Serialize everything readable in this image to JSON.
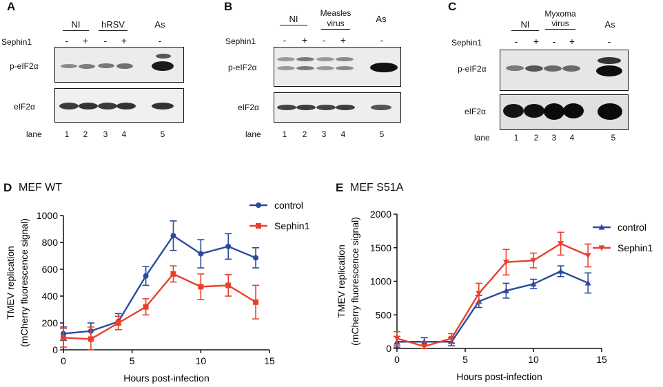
{
  "panels": {
    "A": {
      "label": "A",
      "groups": [
        "NI",
        "hRSV",
        "As"
      ],
      "sephin_label": "Sephin1",
      "signs": [
        "-",
        "+",
        "-",
        "+",
        "-"
      ],
      "band_labels": [
        "p-eIF2α",
        "eIF2α"
      ],
      "lane_label": "lane",
      "lanes": [
        "1",
        "2",
        "3",
        "4",
        "5"
      ]
    },
    "B": {
      "label": "B",
      "groups": [
        "NI",
        "Measles",
        "virus",
        "As"
      ],
      "sephin_label": "Sephin1",
      "signs": [
        "-",
        "+",
        "-",
        "+",
        "-"
      ],
      "band_labels": [
        "p-eIF2α",
        "eIF2α"
      ],
      "lane_label": "lane",
      "lanes": [
        "1",
        "2",
        "3",
        "4",
        "5"
      ]
    },
    "C": {
      "label": "C",
      "groups": [
        "NI",
        "Myxoma",
        "virus",
        "As"
      ],
      "sephin_label": "Sephin1",
      "signs": [
        "-",
        "+",
        "-",
        "+",
        "-"
      ],
      "band_labels": [
        "p-eIF2α",
        "eIF2α"
      ],
      "lane_label": "lane",
      "lanes": [
        "1",
        "2",
        "3",
        "4",
        "5"
      ]
    },
    "D": {
      "label": "D",
      "title": "MEF WT"
    },
    "E": {
      "label": "E",
      "title": "MEF S51A"
    }
  },
  "chart_data": [
    {
      "type": "line",
      "title": "MEF WT",
      "xlabel": "Hours post-infection",
      "ylabel": [
        "TMEV replication",
        "(mCherry fluorescence signal)"
      ],
      "xlim": [
        0,
        15
      ],
      "ylim": [
        0,
        1000
      ],
      "xticks": [
        0,
        5,
        10,
        15
      ],
      "yticks": [
        0,
        200,
        400,
        600,
        800,
        1000
      ],
      "x": [
        0,
        2,
        4,
        6,
        8,
        10,
        12,
        14
      ],
      "legend": "top-right",
      "series": [
        {
          "name": "control",
          "color": "#2a4a9c",
          "marker": "circle",
          "values": [
            120,
            140,
            210,
            550,
            850,
            715,
            770,
            685
          ],
          "errors": [
            50,
            60,
            60,
            70,
            110,
            105,
            95,
            75
          ]
        },
        {
          "name": "Sephin1",
          "color": "#e8412b",
          "marker": "square",
          "values": [
            90,
            80,
            200,
            320,
            565,
            470,
            480,
            355
          ],
          "errors": [
            70,
            90,
            50,
            60,
            60,
            95,
            80,
            125
          ]
        }
      ]
    },
    {
      "type": "line",
      "title": "MEF S51A",
      "xlabel": "Hours post-infection",
      "ylabel": [
        "TMEV replication",
        "(mCherry fluorescence signal)"
      ],
      "xlim": [
        0,
        15
      ],
      "ylim": [
        0,
        2000
      ],
      "xticks": [
        0,
        5,
        10,
        15
      ],
      "yticks": [
        0,
        500,
        1000,
        1500,
        2000
      ],
      "x": [
        0,
        2,
        4,
        6,
        8,
        10,
        12,
        14
      ],
      "legend": "right",
      "series": [
        {
          "name": "control",
          "color": "#2a4a9c",
          "marker": "triangle-up",
          "values": [
            100,
            100,
            100,
            700,
            860,
            960,
            1150,
            975
          ],
          "errors": [
            80,
            60,
            60,
            90,
            110,
            70,
            80,
            150
          ]
        },
        {
          "name": "Sephin1",
          "color": "#e8412b",
          "marker": "triangle-down",
          "values": [
            150,
            30,
            150,
            820,
            1285,
            1310,
            1560,
            1385
          ],
          "errors": [
            100,
            70,
            70,
            150,
            190,
            110,
            170,
            170
          ]
        }
      ]
    }
  ]
}
